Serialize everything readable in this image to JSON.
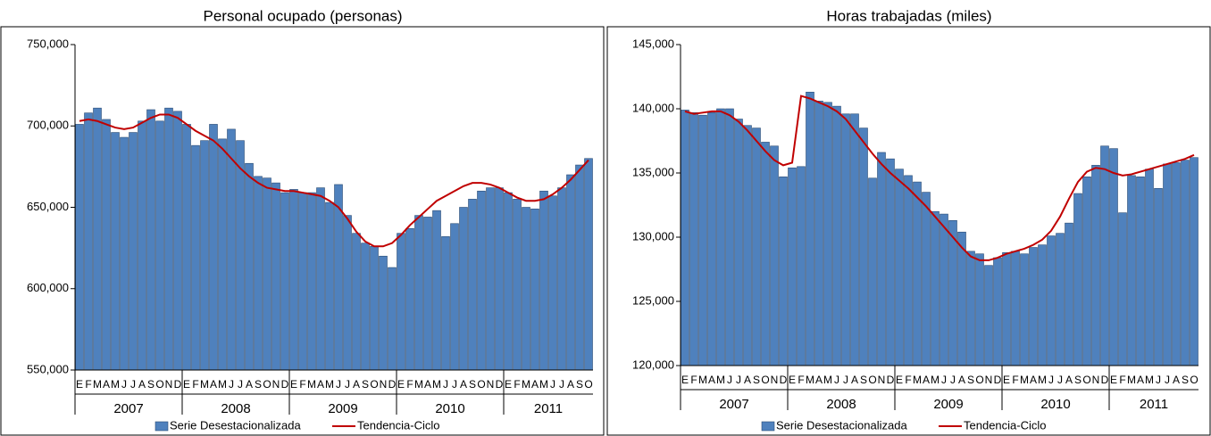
{
  "chart_data": [
    {
      "type": "bar",
      "title": "Personal ocupado (personas)",
      "categories": [
        "E",
        "F",
        "M",
        "A",
        "M",
        "J",
        "J",
        "A",
        "S",
        "O",
        "N",
        "D",
        "E",
        "F",
        "M",
        "A",
        "M",
        "J",
        "J",
        "A",
        "S",
        "O",
        "N",
        "D",
        "E",
        "F",
        "M",
        "A",
        "M",
        "J",
        "J",
        "A",
        "S",
        "O",
        "N",
        "D",
        "E",
        "F",
        "M",
        "A",
        "M",
        "J",
        "J",
        "A",
        "S",
        "O",
        "N",
        "D",
        "E",
        "F",
        "M",
        "A",
        "M",
        "J",
        "J",
        "A",
        "S",
        "O"
      ],
      "years": [
        "2007",
        "2008",
        "2009",
        "2010",
        "2011"
      ],
      "ylim": [
        550000,
        750000
      ],
      "yticks": [
        {
          "value": 550000,
          "label": "550,000"
        },
        {
          "value": 600000,
          "label": "600,000"
        },
        {
          "value": 650000,
          "label": "650,000"
        },
        {
          "value": 700000,
          "label": "700,000"
        },
        {
          "value": 750000,
          "label": "750,000"
        }
      ],
      "series": [
        {
          "name": "Serie Desestacionalizada",
          "type": "bar",
          "color": "#4f81bd",
          "values": [
            701000,
            708000,
            711000,
            704000,
            696000,
            693000,
            696000,
            703000,
            710000,
            703000,
            711000,
            709000,
            701000,
            688000,
            691000,
            701000,
            692000,
            698000,
            691000,
            677000,
            669000,
            668000,
            665000,
            659000,
            661000,
            659000,
            659000,
            662000,
            653000,
            664000,
            645000,
            634000,
            628000,
            626000,
            620000,
            613000,
            634000,
            637000,
            645000,
            644000,
            648000,
            632000,
            640000,
            650000,
            655000,
            660000,
            662000,
            662000,
            659000,
            655000,
            650000,
            649000,
            660000,
            657000,
            662000,
            670000,
            676000,
            680000
          ]
        },
        {
          "name": "Tendencia-Ciclo",
          "type": "line",
          "color": "#c00000",
          "values": [
            703000,
            704000,
            703000,
            701000,
            699000,
            698000,
            699000,
            702000,
            705000,
            707000,
            707000,
            705000,
            701000,
            697000,
            694000,
            691000,
            686000,
            680000,
            674000,
            669000,
            665000,
            662000,
            661000,
            660000,
            660000,
            659000,
            658000,
            657000,
            654000,
            650000,
            643000,
            635000,
            629000,
            626000,
            626000,
            628000,
            633000,
            639000,
            644000,
            649000,
            654000,
            657000,
            660000,
            663000,
            665000,
            665000,
            664000,
            662000,
            659000,
            656000,
            654000,
            654000,
            655000,
            658000,
            662000,
            667000,
            673000,
            679000
          ]
        }
      ]
    },
    {
      "type": "bar",
      "title": "Horas trabajadas (miles)",
      "categories": [
        "E",
        "F",
        "M",
        "A",
        "M",
        "J",
        "J",
        "A",
        "S",
        "O",
        "N",
        "D",
        "E",
        "F",
        "M",
        "A",
        "M",
        "J",
        "J",
        "A",
        "S",
        "O",
        "N",
        "D",
        "E",
        "F",
        "M",
        "A",
        "M",
        "J",
        "J",
        "A",
        "S",
        "O",
        "N",
        "D",
        "E",
        "F",
        "M",
        "A",
        "M",
        "J",
        "J",
        "A",
        "S",
        "O",
        "N",
        "D",
        "E",
        "F",
        "M",
        "A",
        "M",
        "J",
        "J",
        "A",
        "S",
        "O"
      ],
      "years": [
        "2007",
        "2008",
        "2009",
        "2010",
        "2011"
      ],
      "ylim": [
        120000,
        145000
      ],
      "yticks": [
        {
          "value": 120000,
          "label": "120,000"
        },
        {
          "value": 125000,
          "label": "125,000"
        },
        {
          "value": 130000,
          "label": "130,000"
        },
        {
          "value": 135000,
          "label": "135,000"
        },
        {
          "value": 140000,
          "label": "140,000"
        },
        {
          "value": 145000,
          "label": "145,000"
        }
      ],
      "series": [
        {
          "name": "Serie Desestacionalizada",
          "type": "bar",
          "color": "#4f81bd",
          "values": [
            139900,
            139700,
            139500,
            139700,
            140000,
            140000,
            139200,
            138700,
            138500,
            137400,
            137100,
            134700,
            135400,
            135500,
            141300,
            140600,
            140500,
            140200,
            139600,
            139600,
            138500,
            134600,
            136600,
            136100,
            135300,
            134800,
            134300,
            133500,
            132000,
            131800,
            131300,
            130400,
            128900,
            128700,
            127800,
            128400,
            128800,
            128900,
            128700,
            129200,
            129400,
            130100,
            130300,
            131100,
            133400,
            134700,
            135600,
            137100,
            136900,
            131900,
            134800,
            134700,
            135300,
            133800,
            135700,
            135800,
            136000,
            136200
          ]
        },
        {
          "name": "Tendencia-Ciclo",
          "type": "line",
          "color": "#c00000",
          "values": [
            139800,
            139600,
            139700,
            139800,
            139800,
            139500,
            139000,
            138300,
            137500,
            136700,
            136000,
            135600,
            135800,
            141000,
            140800,
            140500,
            140200,
            139800,
            139200,
            138300,
            137400,
            136500,
            135700,
            135000,
            134400,
            133800,
            133100,
            132400,
            131600,
            130800,
            130000,
            129200,
            128500,
            128200,
            128200,
            128400,
            128700,
            128900,
            129100,
            129400,
            129800,
            130500,
            131600,
            133000,
            134300,
            135100,
            135400,
            135300,
            135000,
            134800,
            134900,
            135100,
            135300,
            135500,
            135700,
            135900,
            136100,
            136400
          ]
        }
      ]
    }
  ]
}
